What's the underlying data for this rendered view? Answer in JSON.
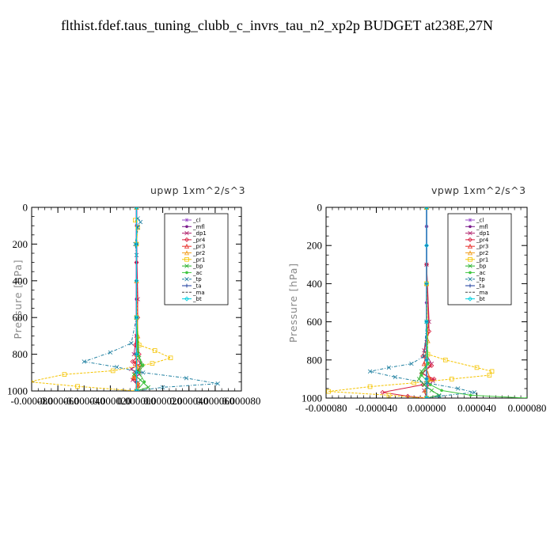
{
  "figure_title": "flthist.fdef.taus_tuning_clubb_c_invrs_tau_n2_xp2p  BUDGET at238E,27N",
  "legend_styles": [
    {
      "name": "_cl",
      "color": "#9b4dca",
      "marker": "star"
    },
    {
      "name": "_mfl",
      "color": "#7b1e8c",
      "marker": "dot"
    },
    {
      "name": "_dp1",
      "color": "#b0206b",
      "marker": "x"
    },
    {
      "name": "_pr4",
      "color": "#d81b3c",
      "marker": "diamond"
    },
    {
      "name": "_pr3",
      "color": "#e8302a",
      "marker": "tri"
    },
    {
      "name": "_pr2",
      "color": "#f2a023",
      "marker": "tri"
    },
    {
      "name": "_pr1",
      "color": "#f5c400",
      "marker": "square"
    },
    {
      "name": "_bp",
      "color": "#27b02b",
      "marker": "x"
    },
    {
      "name": "_ac",
      "color": "#3fc63f",
      "marker": "dot"
    },
    {
      "name": "_tp",
      "color": "#1e7fa0",
      "marker": "x"
    },
    {
      "name": "_ta",
      "color": "#1a3a9c",
      "marker": "plus"
    },
    {
      "name": "_ma",
      "color": "#444444",
      "marker": "none"
    },
    {
      "name": "_bt",
      "color": "#00d0e0",
      "marker": "diamond"
    }
  ],
  "chart_data": [
    {
      "type": "line",
      "title": "upwp   1xm^2/s^3",
      "ylabel": "Pressure [hPa]",
      "xlim": [
        -8e-05,
        8e-05
      ],
      "ylim": [
        1000,
        0
      ],
      "xticks": [
        "-0.000080",
        "-0.000060",
        "-0.000040",
        "-0.000020",
        "0.000000",
        "0.000020",
        "0.000040",
        "0.000060",
        "0.000080"
      ],
      "yticks": [
        "0",
        "200",
        "400",
        "600",
        "800",
        "1000"
      ],
      "legend": "upper-right",
      "series": [
        {
          "name": "_cl",
          "x": [
            0,
            0,
            0,
            0,
            0,
            0,
            0,
            0,
            0,
            0,
            0
          ],
          "y": [
            0,
            100,
            200,
            300,
            400,
            500,
            600,
            700,
            800,
            900,
            1000
          ]
        },
        {
          "name": "_mfl",
          "x": [
            0,
            0,
            0,
            0,
            0,
            0,
            0,
            0,
            0,
            0,
            0
          ],
          "y": [
            0,
            100,
            200,
            300,
            400,
            500,
            600,
            700,
            800,
            900,
            1000
          ]
        },
        {
          "name": "_dp1",
          "x": [
            0,
            0,
            1e-06,
            0,
            -2e-06,
            3e-06,
            -4e-06,
            2e-06,
            -3e-06,
            1e-06,
            0
          ],
          "y": [
            0,
            200,
            500,
            700,
            800,
            850,
            880,
            910,
            940,
            970,
            1000
          ]
        },
        {
          "name": "_pr4",
          "x": [
            0,
            0,
            1e-06,
            -1e-06,
            2e-06,
            -3e-06,
            3e-06,
            -1e-06,
            -2e-06,
            1e-06,
            0
          ],
          "y": [
            0,
            300,
            600,
            750,
            800,
            840,
            870,
            900,
            930,
            960,
            1000
          ]
        },
        {
          "name": "_pr3",
          "x": [
            0,
            0,
            1e-06,
            1e-06,
            -1e-06,
            2e-06,
            -2e-06,
            1e-06,
            0
          ],
          "y": [
            0,
            400,
            700,
            800,
            850,
            890,
            930,
            970,
            1000
          ]
        },
        {
          "name": "_pr2",
          "x": [
            0,
            0,
            1e-06,
            0,
            1e-06,
            -2e-06,
            1e-06,
            0
          ],
          "y": [
            0,
            400,
            700,
            800,
            870,
            920,
            960,
            1000
          ]
        },
        {
          "name": "_pr1",
          "x": [
            -1e-06,
            1e-06,
            0,
            0,
            2e-06,
            1.4e-05,
            2.6e-05,
            1.2e-05,
            -1.8e-05,
            -5.5e-05,
            -8.2e-05,
            -4.5e-05,
            0
          ],
          "y": [
            70,
            110,
            200,
            600,
            750,
            780,
            820,
            850,
            890,
            910,
            950,
            975,
            1000
          ]
        },
        {
          "name": "_bp",
          "x": [
            0,
            0,
            2e-06,
            4e-06,
            1e-06,
            -2e-06,
            3e-06,
            9e-06,
            0
          ],
          "y": [
            0,
            600,
            820,
            860,
            890,
            910,
            940,
            980,
            1000
          ]
        },
        {
          "name": "_ac",
          "x": [
            0,
            0,
            1e-06,
            5e-06,
            2e-06,
            6e-06,
            0
          ],
          "y": [
            0,
            600,
            800,
            860,
            900,
            950,
            1000
          ]
        },
        {
          "name": "_tp",
          "x": [
            1e-06,
            3e-06,
            1e-06,
            -1e-06,
            0,
            0,
            -4e-06,
            -2e-05,
            -4e-05,
            -1.5e-05,
            5e-06,
            3.8e-05,
            6.2e-05,
            2e-05,
            0
          ],
          "y": [
            60,
            80,
            110,
            200,
            260,
            600,
            740,
            790,
            840,
            870,
            900,
            930,
            960,
            980,
            1000
          ]
        },
        {
          "name": "_ta",
          "x": [
            0,
            0,
            0,
            0,
            0,
            0,
            0,
            0
          ],
          "y": [
            0,
            200,
            400,
            600,
            800,
            900,
            950,
            1000
          ]
        },
        {
          "name": "_ma",
          "x": [
            0,
            0,
            0,
            0,
            0
          ],
          "y": [
            0,
            250,
            500,
            750,
            1000
          ]
        },
        {
          "name": "_bt",
          "x": [
            0,
            0,
            0,
            0,
            0,
            0,
            0
          ],
          "y": [
            0,
            200,
            400,
            600,
            800,
            900,
            1000
          ]
        }
      ]
    },
    {
      "type": "line",
      "title": "vpwp   1xm^2/s^3",
      "ylabel": "Pressure [hPa]",
      "xlim": [
        -8e-05,
        8e-05
      ],
      "ylim": [
        1000,
        0
      ],
      "xticks": [
        "-0.000080",
        "-0.000040",
        "0.000000",
        "0.000040",
        "0.000080"
      ],
      "yticks": [
        "0",
        "200",
        "400",
        "600",
        "800",
        "1000"
      ],
      "legend": "upper-right",
      "series": [
        {
          "name": "_cl",
          "x": [
            0,
            0,
            0,
            0,
            0,
            0,
            0,
            0,
            0,
            0,
            0
          ],
          "y": [
            0,
            100,
            200,
            300,
            400,
            500,
            600,
            700,
            800,
            900,
            1000
          ]
        },
        {
          "name": "_mfl",
          "x": [
            0,
            0,
            0,
            0,
            0,
            0,
            0,
            0,
            0,
            0,
            0
          ],
          "y": [
            0,
            100,
            200,
            300,
            400,
            500,
            600,
            700,
            800,
            900,
            1000
          ]
        },
        {
          "name": "_dp1",
          "x": [
            0,
            0,
            2e-06,
            -2e-06,
            4e-06,
            -3e-06,
            5e-06,
            -2e-06,
            0
          ],
          "y": [
            0,
            300,
            600,
            750,
            820,
            870,
            910,
            960,
            1000
          ]
        },
        {
          "name": "_pr4",
          "x": [
            0,
            0,
            2e-06,
            -3e-06,
            4e-06,
            -4e-06,
            6e-06,
            -3e-06,
            -3.5e-05,
            -1.5e-05,
            0
          ],
          "y": [
            0,
            300,
            650,
            780,
            830,
            870,
            900,
            930,
            970,
            990,
            1000
          ]
        },
        {
          "name": "_pr3",
          "x": [
            0,
            0,
            1e-06,
            -2e-06,
            3e-06,
            -1e-06,
            0
          ],
          "y": [
            0,
            400,
            700,
            820,
            900,
            960,
            1000
          ]
        },
        {
          "name": "_pr2",
          "x": [
            0,
            0,
            1e-06,
            0,
            2e-06,
            -1e-06,
            0
          ],
          "y": [
            0,
            400,
            700,
            820,
            900,
            960,
            1000
          ]
        },
        {
          "name": "_pr1",
          "x": [
            0,
            0,
            1e-06,
            1.5e-05,
            4e-05,
            5.2e-05,
            5e-05,
            2e-05,
            -1e-05,
            -4.5e-05,
            -7.8e-05,
            -3e-05,
            0
          ],
          "y": [
            0,
            400,
            770,
            800,
            840,
            860,
            880,
            900,
            920,
            940,
            965,
            985,
            1000
          ]
        },
        {
          "name": "_bp",
          "x": [
            0,
            0,
            1e-06,
            -4e-06,
            -6e-06,
            -2e-06,
            4e-06,
            1e-05,
            0
          ],
          "y": [
            0,
            600,
            820,
            860,
            900,
            930,
            960,
            985,
            1000
          ]
        },
        {
          "name": "_ac",
          "x": [
            0,
            0,
            1e-06,
            -4e-06,
            3e-06,
            1.2e-05,
            3.5e-05,
            8e-05
          ],
          "y": [
            0,
            600,
            820,
            880,
            930,
            960,
            985,
            1000
          ]
        },
        {
          "name": "_tp",
          "x": [
            0,
            0,
            -2e-06,
            -1.2e-05,
            -3e-05,
            -4.5e-05,
            -2.5e-05,
            0.0,
            2.5e-05,
            3.8e-05,
            1e-05,
            0
          ],
          "y": [
            0,
            600,
            780,
            820,
            840,
            860,
            890,
            920,
            950,
            970,
            990,
            1000
          ]
        },
        {
          "name": "_ta",
          "x": [
            0,
            0,
            0,
            0,
            0,
            0,
            0,
            0
          ],
          "y": [
            0,
            200,
            400,
            600,
            800,
            900,
            950,
            1000
          ]
        },
        {
          "name": "_ma",
          "x": [
            0,
            0,
            0,
            0,
            0
          ],
          "y": [
            0,
            250,
            500,
            750,
            1000
          ]
        },
        {
          "name": "_bt",
          "x": [
            0,
            0,
            0,
            0,
            0,
            0,
            0
          ],
          "y": [
            0,
            200,
            400,
            600,
            800,
            900,
            1000
          ]
        }
      ]
    }
  ]
}
